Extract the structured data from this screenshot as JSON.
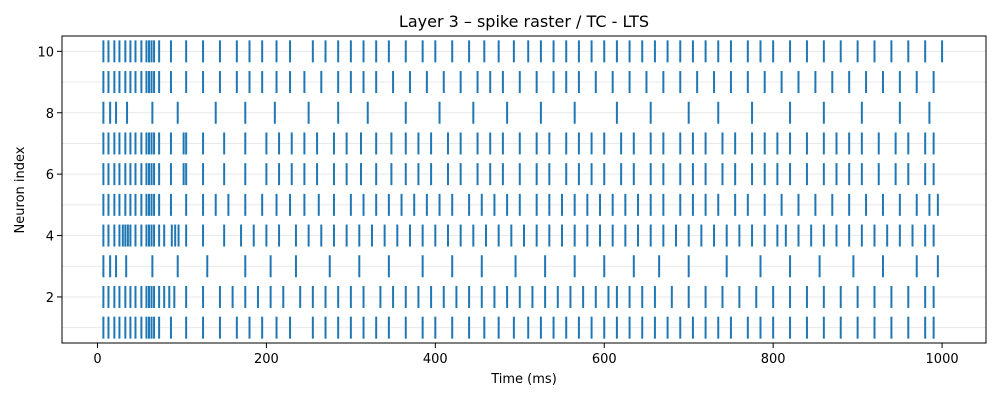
{
  "chart_data": {
    "type": "raster",
    "title": "Layer 3 – spike raster / TC - LTS",
    "xlabel": "Time (ms)",
    "ylabel": "Neuron index",
    "xlim": [
      -42,
      1052
    ],
    "ylim": [
      0.5,
      10.5
    ],
    "xticks": [
      0,
      200,
      400,
      600,
      800,
      1000
    ],
    "yticks": [
      2,
      4,
      6,
      8,
      10
    ],
    "grid_y": true,
    "line_color": "#1f77b4",
    "series": [
      {
        "neuron": 1,
        "spikes": [
          7,
          13,
          20,
          26,
          33,
          39,
          45,
          52,
          58,
          61,
          64,
          67,
          73,
          87,
          105,
          125,
          145,
          165,
          180,
          195,
          212,
          228,
          255,
          270,
          285,
          300,
          315,
          330,
          345,
          365,
          385,
          400,
          420,
          440,
          458,
          475,
          493,
          510,
          525,
          540,
          555,
          570,
          585,
          600,
          615,
          630,
          645,
          660,
          675,
          690,
          705,
          720,
          735,
          750,
          770,
          785,
          800,
          820,
          840,
          860,
          880,
          900,
          920,
          940,
          960,
          980,
          990
        ]
      },
      {
        "neuron": 2,
        "spikes": [
          7,
          13,
          20,
          26,
          33,
          39,
          45,
          52,
          58,
          61,
          64,
          67,
          73,
          79,
          85,
          91,
          105,
          125,
          145,
          160,
          175,
          190,
          205,
          220,
          240,
          255,
          270,
          285,
          300,
          315,
          335,
          350,
          365,
          380,
          395,
          410,
          425,
          440,
          455,
          470,
          485,
          500,
          515,
          530,
          545,
          560,
          575,
          590,
          605,
          615,
          630,
          645,
          660,
          680,
          700,
          720,
          740,
          760,
          780,
          800,
          820,
          840,
          860,
          880,
          900,
          920,
          940,
          960,
          980,
          990
        ]
      },
      {
        "neuron": 3,
        "spikes": [
          7,
          15,
          22,
          34,
          65,
          95,
          130,
          175,
          205,
          235,
          275,
          310,
          345,
          385,
          420,
          455,
          495,
          530,
          565,
          600,
          635,
          665,
          700,
          745,
          785,
          820,
          855,
          895,
          930,
          970,
          995
        ]
      },
      {
        "neuron": 4,
        "spikes": [
          7,
          13,
          20,
          26,
          30,
          33,
          36,
          39,
          45,
          52,
          58,
          61,
          64,
          67,
          73,
          79,
          88,
          92,
          96,
          105,
          125,
          150,
          170,
          185,
          200,
          215,
          235,
          250,
          265,
          280,
          295,
          310,
          325,
          340,
          355,
          370,
          385,
          400,
          415,
          430,
          445,
          460,
          475,
          490,
          505,
          520,
          535,
          550,
          565,
          580,
          595,
          610,
          625,
          640,
          655,
          670,
          685,
          700,
          715,
          730,
          745,
          760,
          775,
          790,
          805,
          815,
          830,
          845,
          860,
          875,
          890,
          905,
          920,
          935,
          950,
          965,
          980,
          990
        ]
      },
      {
        "neuron": 5,
        "spikes": [
          7,
          13,
          20,
          26,
          33,
          39,
          45,
          52,
          58,
          61,
          64,
          67,
          73,
          87,
          105,
          125,
          140,
          155,
          175,
          195,
          212,
          228,
          245,
          262,
          280,
          300,
          315,
          330,
          345,
          360,
          375,
          390,
          405,
          420,
          440,
          455,
          470,
          485,
          500,
          520,
          535,
          550,
          565,
          580,
          595,
          610,
          625,
          640,
          655,
          670,
          690,
          705,
          720,
          735,
          755,
          770,
          790,
          810,
          830,
          850,
          870,
          890,
          910,
          930,
          950,
          970,
          985,
          995
        ]
      },
      {
        "neuron": 6,
        "spikes": [
          7,
          13,
          20,
          26,
          33,
          39,
          45,
          52,
          58,
          61,
          64,
          67,
          73,
          87,
          102,
          105,
          125,
          150,
          175,
          200,
          215,
          230,
          245,
          260,
          280,
          295,
          312,
          330,
          348,
          365,
          380,
          395,
          415,
          430,
          450,
          465,
          480,
          500,
          520,
          535,
          555,
          570,
          585,
          600,
          620,
          635,
          655,
          670,
          690,
          705,
          720,
          740,
          755,
          775,
          790,
          805,
          820,
          840,
          860,
          875,
          890,
          905,
          925,
          945,
          960,
          980,
          990
        ]
      },
      {
        "neuron": 7,
        "spikes": [
          7,
          13,
          20,
          26,
          33,
          39,
          45,
          52,
          58,
          61,
          64,
          67,
          73,
          87,
          102,
          105,
          125,
          150,
          175,
          200,
          215,
          230,
          245,
          260,
          280,
          295,
          312,
          330,
          348,
          365,
          380,
          395,
          415,
          430,
          450,
          465,
          480,
          500,
          520,
          535,
          555,
          570,
          585,
          600,
          620,
          635,
          655,
          670,
          690,
          705,
          720,
          740,
          755,
          775,
          790,
          805,
          820,
          840,
          860,
          875,
          890,
          905,
          925,
          945,
          960,
          980,
          990
        ]
      },
      {
        "neuron": 8,
        "spikes": [
          7,
          15,
          22,
          35,
          65,
          95,
          140,
          175,
          210,
          250,
          285,
          320,
          365,
          405,
          445,
          485,
          525,
          565,
          615,
          655,
          700,
          735,
          775,
          820,
          860,
          905,
          950,
          985
        ]
      },
      {
        "neuron": 9,
        "spikes": [
          7,
          13,
          20,
          26,
          33,
          39,
          45,
          52,
          58,
          61,
          64,
          67,
          73,
          87,
          105,
          125,
          145,
          165,
          180,
          195,
          212,
          228,
          245,
          265,
          285,
          300,
          315,
          330,
          350,
          370,
          390,
          410,
          430,
          450,
          465,
          480,
          500,
          520,
          540,
          555,
          570,
          590,
          610,
          630,
          650,
          670,
          690,
          710,
          730,
          750,
          770,
          790,
          810,
          830,
          850,
          870,
          890,
          910,
          930,
          950,
          970,
          990
        ]
      },
      {
        "neuron": 10,
        "spikes": [
          7,
          13,
          20,
          26,
          33,
          39,
          45,
          52,
          58,
          61,
          64,
          67,
          73,
          87,
          105,
          125,
          145,
          165,
          180,
          195,
          212,
          228,
          255,
          270,
          285,
          300,
          315,
          330,
          345,
          365,
          385,
          400,
          420,
          440,
          458,
          475,
          493,
          510,
          525,
          540,
          555,
          570,
          585,
          600,
          615,
          630,
          645,
          660,
          675,
          690,
          705,
          720,
          735,
          750,
          770,
          785,
          800,
          820,
          840,
          860,
          880,
          900,
          920,
          940,
          960,
          980,
          1000
        ]
      }
    ]
  }
}
